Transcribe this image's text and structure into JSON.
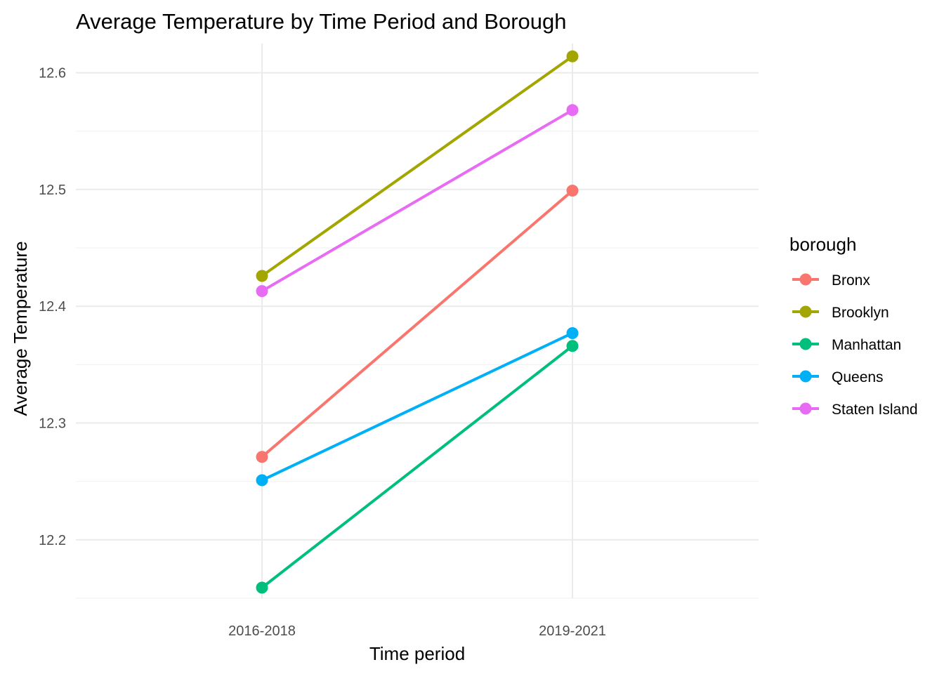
{
  "chart_data": {
    "type": "line",
    "title": "Average Temperature by Time Period and Borough",
    "xlabel": "Time period",
    "ylabel": "Average Temperature",
    "categories": [
      "2016-2018",
      "2019-2021"
    ],
    "ylim": [
      12.15,
      12.625
    ],
    "yticks": [
      12.2,
      12.3,
      12.4,
      12.5,
      12.6
    ],
    "ytick_labels": [
      "12.2",
      "12.3",
      "12.4",
      "12.5",
      "12.6"
    ],
    "grid": true,
    "legend": {
      "title": "borough",
      "position": "right"
    },
    "series": [
      {
        "name": "Bronx",
        "color": "#F8766D",
        "values": [
          12.271,
          12.499
        ]
      },
      {
        "name": "Brooklyn",
        "color": "#A3A500",
        "values": [
          12.426,
          12.614
        ]
      },
      {
        "name": "Manhattan",
        "color": "#00BF7D",
        "values": [
          12.159,
          12.366
        ]
      },
      {
        "name": "Queens",
        "color": "#00B0F6",
        "values": [
          12.251,
          12.377
        ]
      },
      {
        "name": "Staten Island",
        "color": "#E76BF3",
        "values": [
          12.413,
          12.568
        ]
      }
    ]
  }
}
